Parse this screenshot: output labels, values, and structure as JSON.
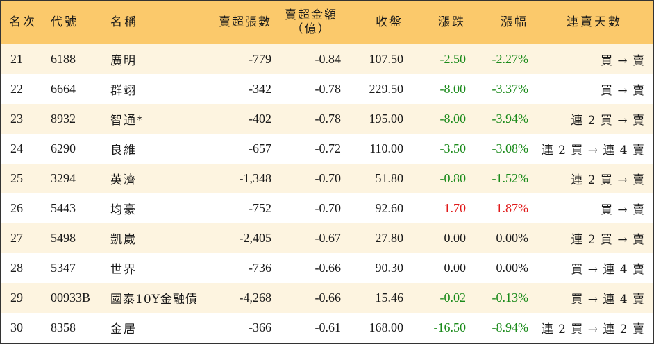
{
  "header": {
    "rank": "名次",
    "code": "代號",
    "name": "名稱",
    "volume": "賣超張數",
    "amount_line1": "賣超金額",
    "amount_line2": "（億）",
    "close": "收盤",
    "change": "漲跌",
    "pct": "漲幅",
    "streak": "連賣天數"
  },
  "colors": {
    "header_bg": "#fbc96b",
    "row_alt_bg": "#fdf4e0",
    "down": "#1a8a1a",
    "up": "#e01818"
  },
  "rows": [
    {
      "rank": "21",
      "code": "6188",
      "name": "廣明",
      "volume": "-779",
      "amount": "-0.84",
      "close": "107.50",
      "change": "-2.50",
      "pct": "-2.27%",
      "trend": "down",
      "streak": "買 → 賣"
    },
    {
      "rank": "22",
      "code": "6664",
      "name": "群翊",
      "volume": "-342",
      "amount": "-0.78",
      "close": "229.50",
      "change": "-8.00",
      "pct": "-3.37%",
      "trend": "down",
      "streak": "買 → 賣"
    },
    {
      "rank": "23",
      "code": "8932",
      "name": "智通*",
      "volume": "-402",
      "amount": "-0.78",
      "close": "195.00",
      "change": "-8.00",
      "pct": "-3.94%",
      "trend": "down",
      "streak": "連 2 買 → 賣"
    },
    {
      "rank": "24",
      "code": "6290",
      "name": "良維",
      "volume": "-657",
      "amount": "-0.72",
      "close": "110.00",
      "change": "-3.50",
      "pct": "-3.08%",
      "trend": "down",
      "streak": "連 2 買 → 連 4 賣"
    },
    {
      "rank": "25",
      "code": "3294",
      "name": "英濟",
      "volume": "-1,348",
      "amount": "-0.70",
      "close": "51.80",
      "change": "-0.80",
      "pct": "-1.52%",
      "trend": "down",
      "streak": "連 2 買 → 賣"
    },
    {
      "rank": "26",
      "code": "5443",
      "name": "均豪",
      "volume": "-752",
      "amount": "-0.70",
      "close": "92.60",
      "change": "1.70",
      "pct": "1.87%",
      "trend": "up",
      "streak": "買 → 賣"
    },
    {
      "rank": "27",
      "code": "5498",
      "name": "凱崴",
      "volume": "-2,405",
      "amount": "-0.67",
      "close": "27.80",
      "change": "0.00",
      "pct": "0.00%",
      "trend": "flat",
      "streak": "連 2 買 → 賣"
    },
    {
      "rank": "28",
      "code": "5347",
      "name": "世界",
      "volume": "-736",
      "amount": "-0.66",
      "close": "90.30",
      "change": "0.00",
      "pct": "0.00%",
      "trend": "flat",
      "streak": "買 → 連 4 賣"
    },
    {
      "rank": "29",
      "code": "00933B",
      "name": "國泰10Y金融債",
      "volume": "-4,268",
      "amount": "-0.66",
      "close": "15.46",
      "change": "-0.02",
      "pct": "-0.13%",
      "trend": "down",
      "streak": "買 → 連 4 賣"
    },
    {
      "rank": "30",
      "code": "8358",
      "name": "金居",
      "volume": "-366",
      "amount": "-0.61",
      "close": "168.00",
      "change": "-16.50",
      "pct": "-8.94%",
      "trend": "down",
      "streak": "連 2 買 → 連 2 賣"
    }
  ]
}
